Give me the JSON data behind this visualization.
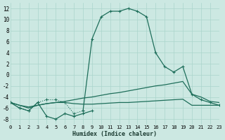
{
  "xlabel": "Humidex (Indice chaleur)",
  "background_color": "#cce8e2",
  "grid_color": "#aad4cc",
  "line_color": "#1e6e5a",
  "xlim": [
    0,
    23
  ],
  "ylim": [
    -9,
    13
  ],
  "xticks": [
    0,
    1,
    2,
    3,
    4,
    5,
    6,
    7,
    8,
    9,
    10,
    11,
    12,
    13,
    14,
    15,
    16,
    17,
    18,
    19,
    20,
    21,
    22,
    23
  ],
  "yticks": [
    -8,
    -6,
    -4,
    -2,
    0,
    2,
    4,
    6,
    8,
    10,
    12
  ],
  "line1_x": [
    0,
    1,
    2,
    3,
    4,
    5,
    6,
    7,
    8,
    9,
    10,
    11,
    12,
    13,
    14,
    15,
    16,
    17,
    18,
    19,
    20,
    21,
    22,
    23
  ],
  "line1_y": [
    -5.0,
    -6.0,
    -6.5,
    -5.0,
    -4.5,
    -4.5,
    -5.0,
    -7.0,
    -6.5,
    6.5,
    10.5,
    11.5,
    11.5,
    12.0,
    11.5,
    10.5,
    4.0,
    1.5,
    0.5,
    1.5,
    -3.5,
    -4.5,
    -5.0,
    -5.5
  ],
  "line2_x": [
    0,
    1,
    2,
    3,
    4,
    5,
    6,
    7,
    8,
    9
  ],
  "line2_y": [
    -5.0,
    -6.0,
    -6.5,
    -5.0,
    -7.5,
    -8.0,
    -7.0,
    -7.5,
    -7.0,
    -6.5
  ],
  "line3_x": [
    0,
    1,
    2,
    3,
    4,
    5,
    6,
    7,
    8,
    9,
    10,
    11,
    12,
    13,
    14,
    15,
    16,
    17,
    18,
    19,
    20,
    21,
    22,
    23
  ],
  "line3_y": [
    -5.0,
    -5.5,
    -5.8,
    -5.5,
    -5.2,
    -5.0,
    -4.8,
    -4.5,
    -4.2,
    -4.0,
    -3.7,
    -3.4,
    -3.2,
    -2.9,
    -2.6,
    -2.3,
    -2.0,
    -1.8,
    -1.5,
    -1.2,
    -3.5,
    -4.0,
    -4.8,
    -5.0
  ],
  "line4_x": [
    0,
    1,
    2,
    3,
    4,
    5,
    6,
    7,
    8,
    9,
    10,
    11,
    12,
    13,
    14,
    15,
    16,
    17,
    18,
    19,
    20,
    21,
    22,
    23
  ],
  "line4_y": [
    -5.0,
    -5.5,
    -6.0,
    -5.5,
    -5.2,
    -5.0,
    -5.0,
    -5.2,
    -5.3,
    -5.3,
    -5.2,
    -5.1,
    -5.0,
    -5.0,
    -4.9,
    -4.8,
    -4.7,
    -4.6,
    -4.5,
    -4.4,
    -5.5,
    -5.5,
    -5.5,
    -5.5
  ],
  "line1_dotted_x": [
    0,
    1,
    2,
    3,
    4,
    5,
    6,
    7,
    8
  ],
  "line1_dotted_y": [
    -5.0,
    -6.0,
    -6.5,
    -5.0,
    -4.5,
    -4.5,
    -5.0,
    -7.0,
    -6.5
  ]
}
